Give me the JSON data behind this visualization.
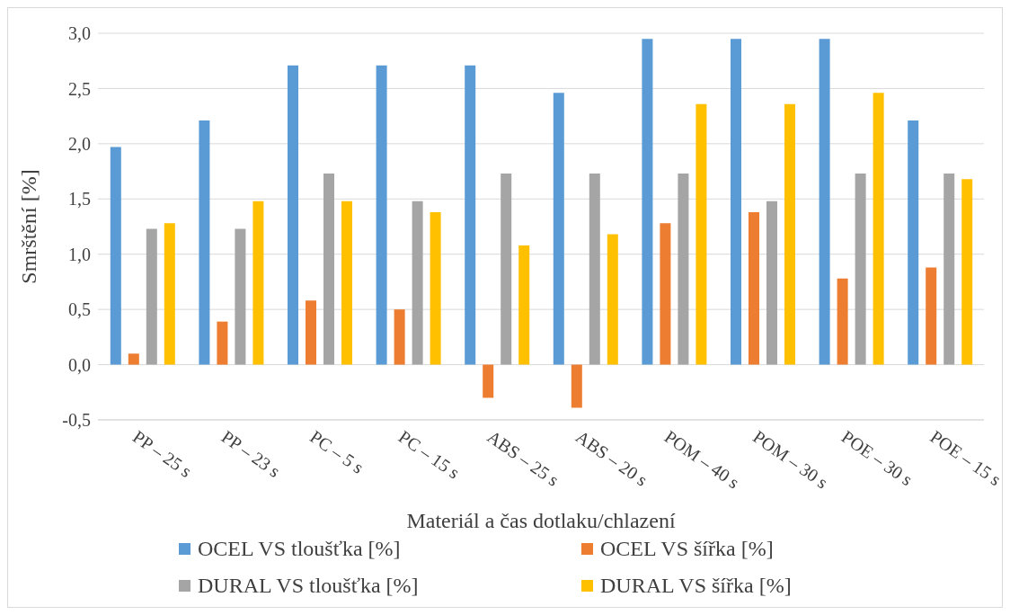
{
  "chart_data": {
    "type": "bar",
    "xlabel": "Materiál a čas dotlaku/chlazení",
    "ylabel": "Smrštění [%]",
    "categories": [
      "PP – 25 s",
      "PP – 23 s",
      "PC – 5 s",
      "PC – 15 s",
      "ABS – 25 s",
      "ABS – 20 s",
      "POM – 40 s",
      "POM – 30 s",
      "POE – 30 s",
      "POE – 15 s"
    ],
    "series": [
      {
        "name": "OCEL VS tloušťka [%]",
        "color": "#5b9bd5",
        "values": [
          1.97,
          2.21,
          2.71,
          2.71,
          2.71,
          2.46,
          2.95,
          2.95,
          2.95,
          2.21
        ]
      },
      {
        "name": "OCEL VS šířka [%]",
        "color": "#ed7d31",
        "values": [
          0.1,
          0.39,
          0.58,
          0.5,
          -0.3,
          -0.39,
          1.28,
          1.38,
          0.78,
          0.88
        ]
      },
      {
        "name": "DURAL VS tloušťka [%]",
        "color": "#a5a5a5",
        "values": [
          1.23,
          1.23,
          1.73,
          1.48,
          1.73,
          1.73,
          1.73,
          1.48,
          1.73,
          1.73
        ]
      },
      {
        "name": "DURAL VS šířka [%]",
        "color": "#ffc000",
        "values": [
          1.28,
          1.48,
          1.48,
          1.38,
          1.08,
          1.18,
          2.36,
          2.36,
          2.46,
          1.68
        ]
      }
    ],
    "ylim": [
      -0.5,
      3
    ],
    "yticks": [
      {
        "value": -0.5,
        "label": "-0,5"
      },
      {
        "value": 0,
        "label": "0,0"
      },
      {
        "value": 0.5,
        "label": "0,5"
      },
      {
        "value": 1,
        "label": "1,0"
      },
      {
        "value": 1.5,
        "label": "1,5"
      },
      {
        "value": 2,
        "label": "2,0"
      },
      {
        "value": 2.5,
        "label": "2,5"
      },
      {
        "value": 3,
        "label": "3,0"
      }
    ],
    "grid": "y",
    "legend": "bottom"
  }
}
